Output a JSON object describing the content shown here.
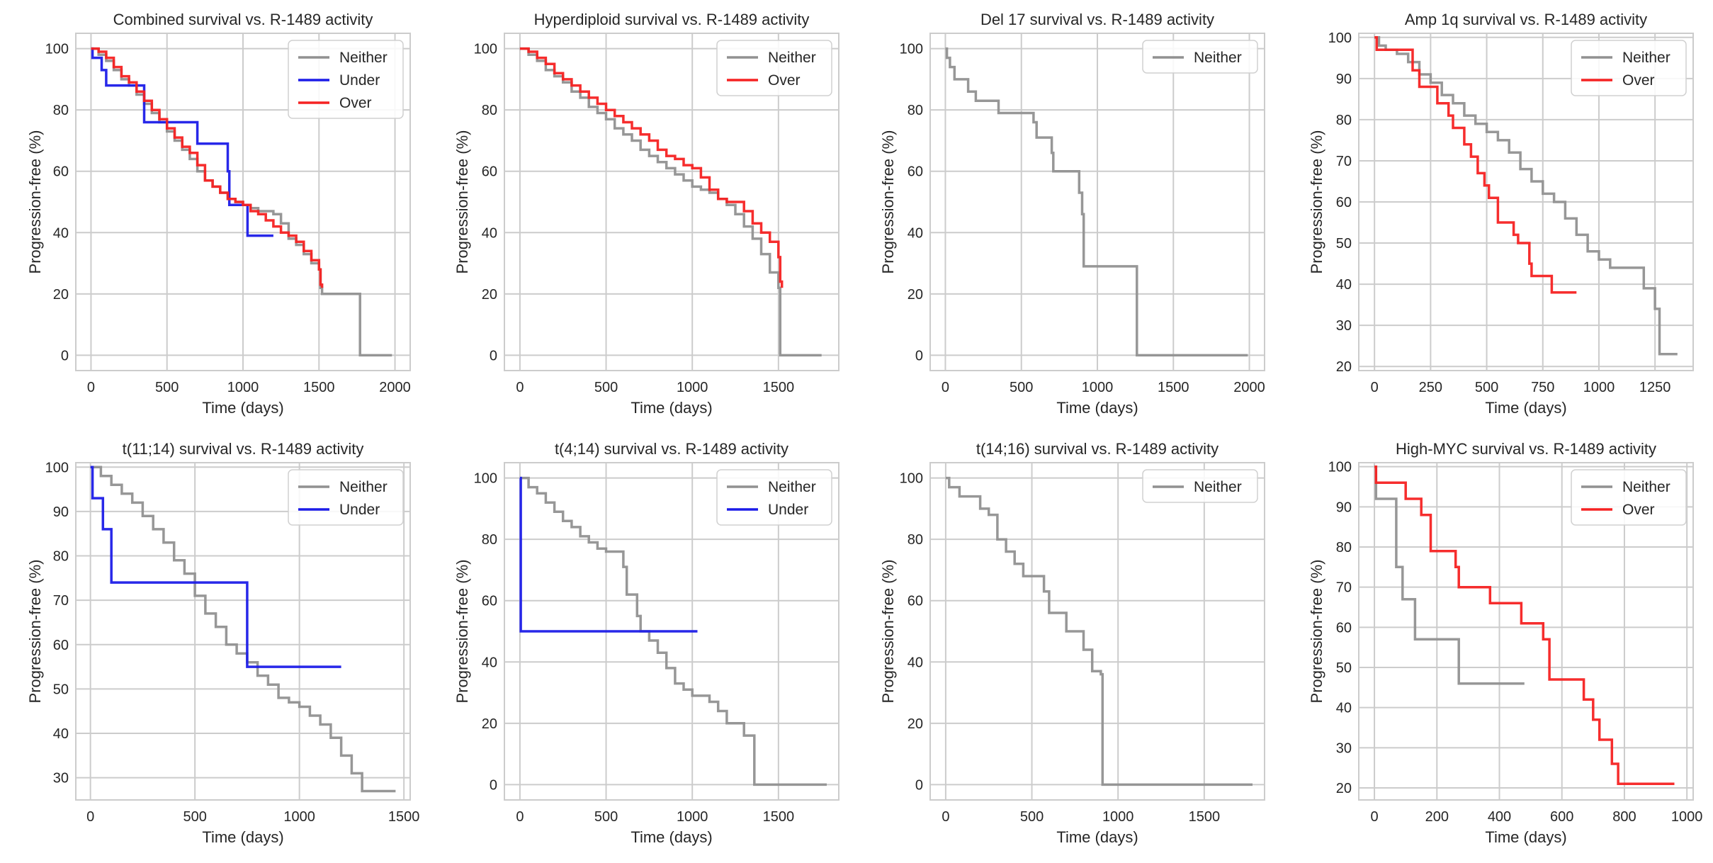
{
  "figure": {
    "colors": {
      "Neither": "#919191",
      "Under": "#1c1ce8",
      "Over": "#f52222"
    }
  },
  "chart_data": [
    {
      "type": "line",
      "step": true,
      "title": "Combined survival vs. R-1489 activity",
      "xlabel": "Time (days)",
      "ylabel": "Progression-free (%)",
      "xlim": [
        -100,
        2100
      ],
      "ylim": [
        -5,
        105
      ],
      "xticks": [
        0,
        500,
        1000,
        1500,
        2000
      ],
      "yticks": [
        0,
        20,
        40,
        60,
        80,
        100
      ],
      "legend": [
        "Neither",
        "Under",
        "Over"
      ],
      "series": [
        {
          "name": "Neither",
          "x": [
            0,
            50,
            100,
            150,
            200,
            250,
            300,
            350,
            400,
            450,
            500,
            550,
            600,
            650,
            700,
            750,
            800,
            850,
            900,
            950,
            1000,
            1050,
            1100,
            1150,
            1200,
            1250,
            1300,
            1350,
            1400,
            1450,
            1500,
            1510,
            1520,
            1760,
            1770,
            1980
          ],
          "y": [
            100,
            98,
            96,
            93,
            90,
            88,
            85,
            82,
            79,
            76,
            73,
            70,
            67,
            64,
            60,
            57,
            55,
            53,
            51,
            50,
            49,
            48,
            47,
            47,
            46,
            43,
            38,
            36,
            33,
            30,
            28,
            22,
            20,
            20,
            0,
            0
          ]
        },
        {
          "name": "Under",
          "x": [
            0,
            10,
            70,
            100,
            340,
            350,
            690,
            700,
            900,
            910,
            1030,
            1200
          ],
          "y": [
            100,
            97,
            93,
            88,
            88,
            76,
            76,
            69,
            60,
            49,
            39,
            39
          ]
        },
        {
          "name": "Over",
          "x": [
            0,
            50,
            100,
            150,
            200,
            250,
            300,
            350,
            400,
            450,
            500,
            550,
            600,
            650,
            700,
            750,
            800,
            850,
            900,
            950,
            1000,
            1050,
            1100,
            1150,
            1200,
            1250,
            1300,
            1350,
            1400,
            1450,
            1500,
            1510,
            1520
          ],
          "y": [
            100,
            99,
            97,
            94,
            91,
            89,
            86,
            83,
            80,
            77,
            74,
            71,
            68,
            66,
            62,
            57,
            55,
            53,
            51,
            50,
            49,
            47,
            46,
            44,
            42,
            40,
            39,
            37,
            34,
            31,
            28,
            23,
            22
          ]
        }
      ]
    },
    {
      "type": "line",
      "step": true,
      "title": "Hyperdiploid survival vs. R-1489 activity",
      "xlabel": "Time (days)",
      "ylabel": "Progression-free (%)",
      "xlim": [
        -90,
        1850
      ],
      "ylim": [
        -5,
        105
      ],
      "xticks": [
        0,
        500,
        1000,
        1500
      ],
      "yticks": [
        0,
        20,
        40,
        60,
        80,
        100
      ],
      "legend": [
        "Neither",
        "Over"
      ],
      "series": [
        {
          "name": "Neither",
          "x": [
            0,
            50,
            100,
            150,
            200,
            250,
            300,
            350,
            400,
            450,
            500,
            550,
            600,
            650,
            700,
            750,
            800,
            850,
            900,
            950,
            1000,
            1050,
            1100,
            1150,
            1200,
            1250,
            1300,
            1350,
            1400,
            1450,
            1500,
            1510,
            1750
          ],
          "y": [
            100,
            98,
            96,
            93,
            91,
            89,
            86,
            84,
            81,
            79,
            77,
            74,
            72,
            70,
            67,
            65,
            63,
            61,
            59,
            57,
            55,
            54,
            53,
            51,
            49,
            46,
            42,
            38,
            33,
            27,
            22,
            0,
            0
          ]
        },
        {
          "name": "Over",
          "x": [
            0,
            50,
            100,
            150,
            200,
            250,
            300,
            350,
            400,
            450,
            500,
            550,
            600,
            650,
            700,
            750,
            800,
            850,
            900,
            950,
            1000,
            1050,
            1100,
            1150,
            1200,
            1250,
            1300,
            1350,
            1400,
            1450,
            1500,
            1510,
            1520
          ],
          "y": [
            100,
            99,
            97,
            95,
            92,
            90,
            88,
            86,
            84,
            82,
            80,
            78,
            76,
            74,
            72,
            70,
            67,
            65,
            64,
            62,
            61,
            58,
            54,
            51,
            50,
            50,
            47,
            43,
            40,
            37,
            32,
            24,
            22
          ]
        }
      ]
    },
    {
      "type": "line",
      "step": true,
      "title": "Del 17 survival vs. R-1489 activity",
      "xlabel": "Time (days)",
      "ylabel": "Progression-free (%)",
      "xlim": [
        -100,
        2100
      ],
      "ylim": [
        -5,
        105
      ],
      "xticks": [
        0,
        500,
        1000,
        1500,
        2000
      ],
      "yticks": [
        0,
        20,
        40,
        60,
        80,
        100
      ],
      "legend": [
        "Neither"
      ],
      "series": [
        {
          "name": "Neither",
          "x": [
            0,
            10,
            30,
            60,
            120,
            150,
            200,
            350,
            550,
            580,
            600,
            700,
            710,
            860,
            880,
            900,
            910,
            1250,
            1260,
            1990
          ],
          "y": [
            100,
            97,
            94,
            90,
            90,
            86,
            83,
            79,
            79,
            76,
            71,
            66,
            60,
            60,
            53,
            46,
            29,
            29,
            0,
            0
          ]
        }
      ]
    },
    {
      "type": "line",
      "step": true,
      "title": "Amp 1q survival vs. R-1489 activity",
      "xlabel": "Time (days)",
      "ylabel": "Progression-free (%)",
      "xlim": [
        -70,
        1420
      ],
      "ylim": [
        19,
        101
      ],
      "xticks": [
        0,
        250,
        500,
        750,
        1000,
        1250
      ],
      "yticks": [
        20,
        30,
        40,
        50,
        60,
        70,
        80,
        90,
        100
      ],
      "legend": [
        "Neither",
        "Over"
      ],
      "series": [
        {
          "name": "Neither",
          "x": [
            0,
            20,
            50,
            100,
            150,
            200,
            250,
            300,
            350,
            400,
            450,
            500,
            550,
            600,
            650,
            700,
            750,
            800,
            850,
            900,
            950,
            1000,
            1050,
            1100,
            1150,
            1200,
            1250,
            1270,
            1290,
            1350
          ],
          "y": [
            100,
            98,
            97,
            96,
            94,
            91,
            89,
            86,
            84,
            81,
            79,
            77,
            75,
            72,
            68,
            65,
            62,
            60,
            56,
            52,
            48,
            46,
            44,
            44,
            44,
            39,
            34,
            23,
            23,
            23
          ]
        },
        {
          "name": "Over",
          "x": [
            0,
            10,
            80,
            170,
            200,
            280,
            330,
            350,
            400,
            430,
            460,
            490,
            510,
            550,
            620,
            640,
            690,
            700,
            790,
            900
          ],
          "y": [
            100,
            97,
            97,
            92,
            88,
            84,
            81,
            78,
            74,
            71,
            67,
            64,
            61,
            55,
            52,
            50,
            45,
            42,
            38,
            38
          ]
        }
      ]
    },
    {
      "type": "line",
      "step": true,
      "title": "t(11;14) survival vs. R-1489 activity",
      "xlabel": "Time (days)",
      "ylabel": "Progression-free (%)",
      "xlim": [
        -70,
        1530
      ],
      "ylim": [
        25,
        101
      ],
      "xticks": [
        0,
        500,
        1000,
        1500
      ],
      "yticks": [
        30,
        40,
        50,
        60,
        70,
        80,
        90,
        100
      ],
      "legend": [
        "Neither",
        "Under"
      ],
      "series": [
        {
          "name": "Neither",
          "x": [
            0,
            50,
            100,
            150,
            200,
            250,
            300,
            350,
            400,
            450,
            500,
            550,
            600,
            650,
            700,
            750,
            800,
            850,
            900,
            950,
            1000,
            1050,
            1100,
            1150,
            1200,
            1250,
            1300,
            1460
          ],
          "y": [
            100,
            98,
            96,
            94,
            92,
            89,
            86,
            83,
            79,
            76,
            71,
            67,
            64,
            60,
            58,
            56,
            53,
            51,
            48,
            47,
            46,
            44,
            42,
            39,
            35,
            31,
            27,
            27
          ]
        },
        {
          "name": "Under",
          "x": [
            0,
            10,
            60,
            100,
            740,
            750,
            1200
          ],
          "y": [
            100,
            93,
            86,
            74,
            74,
            55,
            55
          ]
        }
      ]
    },
    {
      "type": "line",
      "step": true,
      "title": "t(4;14) survival vs. R-1489 activity",
      "xlabel": "Time (days)",
      "ylabel": "Progression-free (%)",
      "xlim": [
        -90,
        1850
      ],
      "ylim": [
        -5,
        105
      ],
      "xticks": [
        0,
        500,
        1000,
        1500
      ],
      "yticks": [
        0,
        20,
        40,
        60,
        80,
        100
      ],
      "legend": [
        "Neither",
        "Under"
      ],
      "series": [
        {
          "name": "Neither",
          "x": [
            0,
            50,
            100,
            150,
            200,
            250,
            300,
            350,
            400,
            450,
            500,
            550,
            600,
            620,
            680,
            700,
            750,
            800,
            850,
            900,
            950,
            1000,
            1050,
            1100,
            1150,
            1200,
            1300,
            1350,
            1360,
            1780
          ],
          "y": [
            100,
            97,
            95,
            92,
            89,
            86,
            84,
            81,
            79,
            77,
            76,
            76,
            71,
            62,
            55,
            50,
            47,
            43,
            38,
            33,
            31,
            29,
            29,
            27,
            24,
            20,
            16,
            16,
            0,
            0
          ]
        },
        {
          "name": "Under",
          "x": [
            0,
            5,
            1030
          ],
          "y": [
            100,
            50,
            50
          ]
        }
      ]
    },
    {
      "type": "line",
      "step": true,
      "title": "t(14;16) survival vs. R-1489 activity",
      "xlabel": "Time (days)",
      "ylabel": "Progression-free (%)",
      "xlim": [
        -90,
        1850
      ],
      "ylim": [
        -5,
        105
      ],
      "xticks": [
        0,
        500,
        1000,
        1500
      ],
      "yticks": [
        0,
        20,
        40,
        60,
        80,
        100
      ],
      "legend": [
        "Neither"
      ],
      "series": [
        {
          "name": "Neither",
          "x": [
            0,
            20,
            80,
            200,
            250,
            300,
            350,
            400,
            450,
            550,
            570,
            600,
            700,
            800,
            850,
            900,
            910,
            1780
          ],
          "y": [
            100,
            97,
            94,
            90,
            88,
            80,
            76,
            72,
            68,
            68,
            63,
            56,
            50,
            44,
            37,
            36,
            0,
            0
          ]
        }
      ]
    },
    {
      "type": "line",
      "step": true,
      "title": "High-MYC survival vs. R-1489 activity",
      "xlabel": "Time (days)",
      "ylabel": "Progression-free (%)",
      "xlim": [
        -50,
        1020
      ],
      "ylim": [
        17,
        101
      ],
      "xticks": [
        0,
        200,
        400,
        600,
        800,
        1000
      ],
      "yticks": [
        20,
        30,
        40,
        50,
        60,
        70,
        80,
        90,
        100
      ],
      "legend": [
        "Neither",
        "Over"
      ],
      "series": [
        {
          "name": "Neither",
          "x": [
            0,
            5,
            60,
            70,
            90,
            130,
            260,
            270,
            480
          ],
          "y": [
            100,
            92,
            92,
            75,
            67,
            57,
            57,
            46,
            46
          ]
        },
        {
          "name": "Over",
          "x": [
            0,
            5,
            100,
            150,
            180,
            260,
            270,
            370,
            470,
            540,
            560,
            670,
            700,
            720,
            760,
            780,
            960
          ],
          "y": [
            100,
            96,
            92,
            88,
            79,
            75,
            70,
            66,
            61,
            57,
            47,
            42,
            37,
            32,
            26,
            21,
            21
          ]
        }
      ]
    }
  ]
}
